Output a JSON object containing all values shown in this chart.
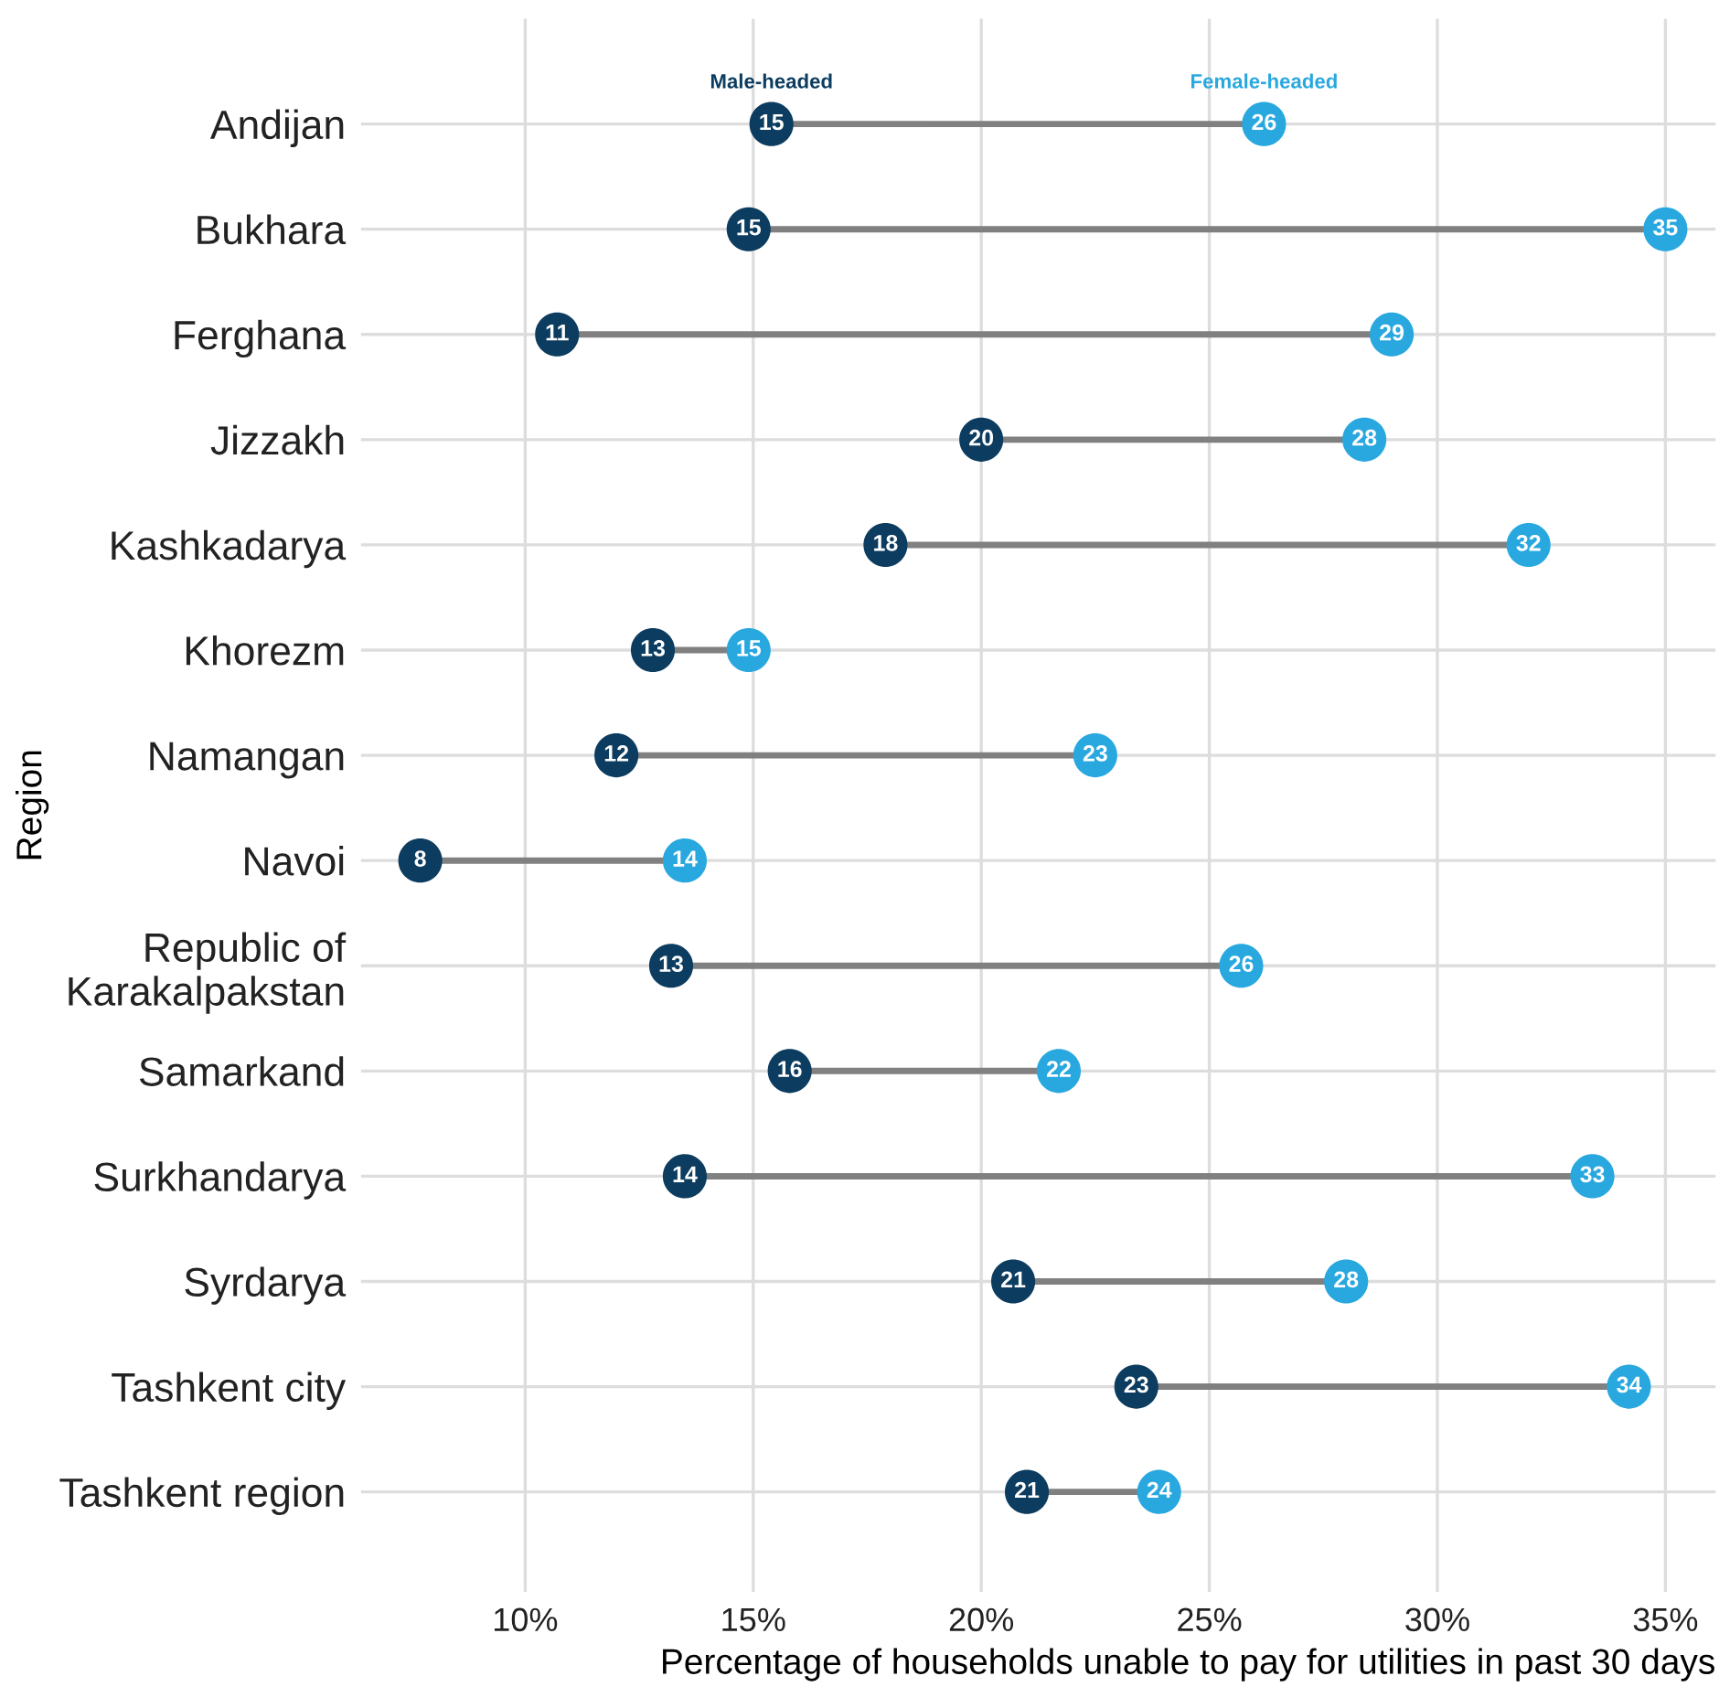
{
  "chart_data": {
    "type": "lollipop",
    "orientation": "horizontal",
    "xlabel": "Percentage of households unable to pay for utilities in past 30 days",
    "ylabel": "Region",
    "categories": [
      "Andijan",
      "Bukhara",
      "Ferghana",
      "Jizzakh",
      "Kashkadarya",
      "Khorezm",
      "Namangan",
      "Navoi",
      "Republic of\nKarakalpakstan",
      "Samarkand",
      "Surkhandarya",
      "Syrdarya",
      "Tashkent city",
      "Tashkent region"
    ],
    "series": [
      {
        "name": "Male-headed",
        "type": "scatter",
        "color": "#0c3c5f",
        "values": [
          15.4,
          14.9,
          10.7,
          20.0,
          17.9,
          12.8,
          12.0,
          7.7,
          13.2,
          15.8,
          13.5,
          20.7,
          23.4,
          21.0
        ],
        "value_labels": [
          "15",
          "15",
          "11",
          "20",
          "18",
          "13",
          "12",
          "8",
          "13",
          "16",
          "14",
          "21",
          "23",
          "21"
        ]
      },
      {
        "name": "Female-headed",
        "type": "scatter",
        "color": "#29a8df",
        "values": [
          26.2,
          35.0,
          29.0,
          28.4,
          32.0,
          14.9,
          22.5,
          13.5,
          25.7,
          21.7,
          33.4,
          28.0,
          34.2,
          23.9
        ],
        "value_labels": [
          "26",
          "35",
          "29",
          "28",
          "32",
          "15",
          "23",
          "14",
          "26",
          "22",
          "33",
          "28",
          "34",
          "24"
        ]
      }
    ],
    "xlim": [
      6.4,
      36.1
    ],
    "xticks": [
      {
        "value": 10,
        "label": "10%"
      },
      {
        "value": 15,
        "label": "15%"
      },
      {
        "value": 20,
        "label": "20%"
      },
      {
        "value": 25,
        "label": "25%"
      },
      {
        "value": 30,
        "label": "30%"
      },
      {
        "value": 35,
        "label": "35%"
      }
    ],
    "grid": true,
    "marker": "circle"
  }
}
